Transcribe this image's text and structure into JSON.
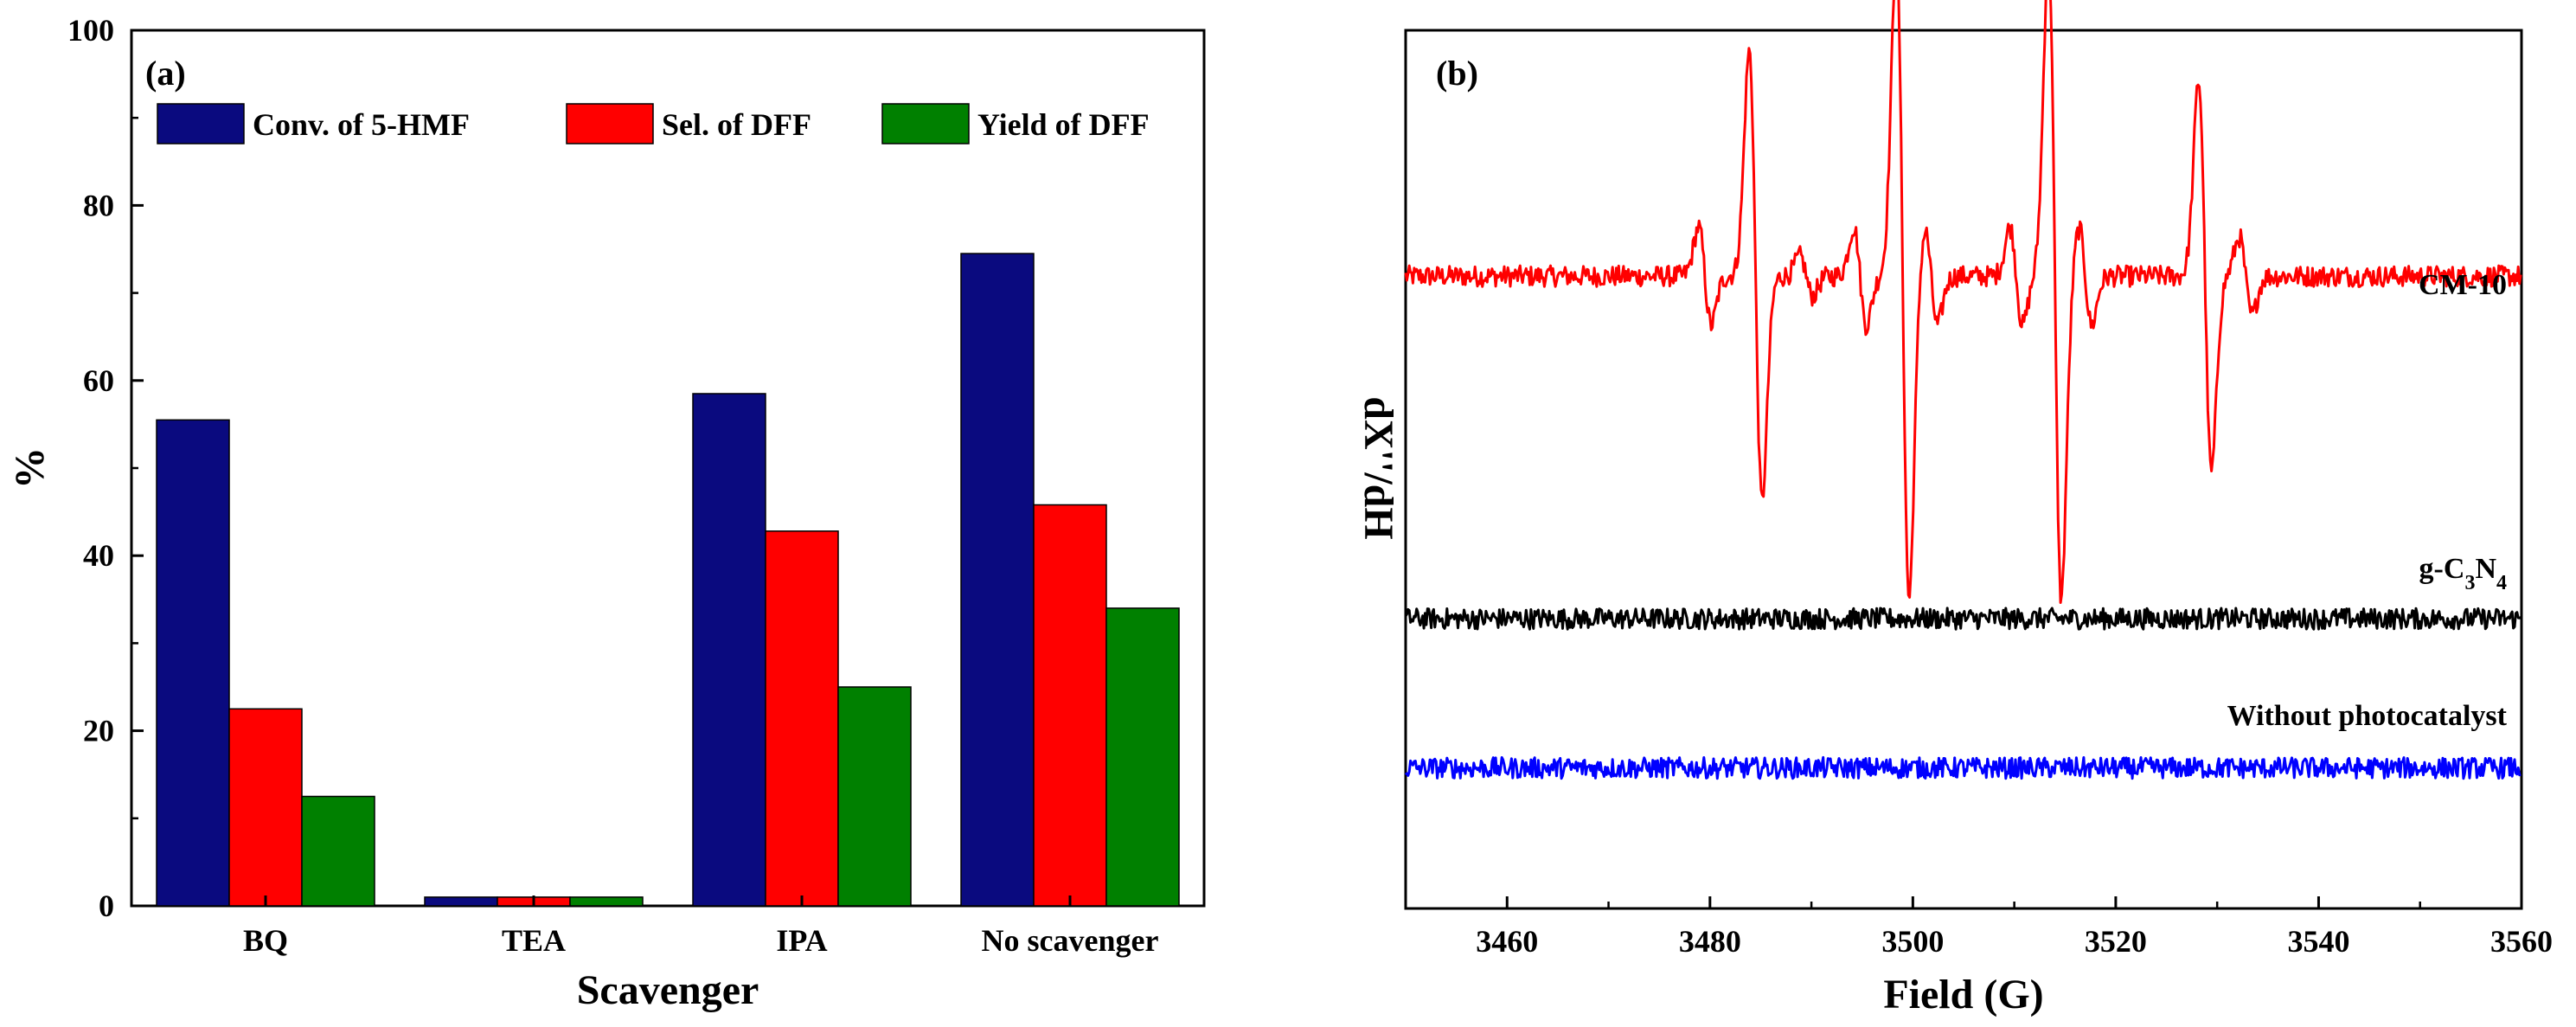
{
  "chart_data": [
    {
      "panel": "(a)",
      "type": "bar",
      "xlabel": "Scavenger",
      "ylabel": "%",
      "ylim": [
        0,
        100
      ],
      "yticks": [
        0,
        20,
        40,
        60,
        80,
        100
      ],
      "categories": [
        "BQ",
        "TEA",
        "IPA",
        "No scavenger"
      ],
      "legend_position": "top",
      "series": [
        {
          "name": "Conv. of 5-HMF",
          "color": "#0a0a7f",
          "values": [
            55.5,
            1.0,
            58.5,
            74.5
          ]
        },
        {
          "name": "Sel. of DFF",
          "color": "#ff0000",
          "values": [
            22.5,
            1.0,
            42.8,
            45.8
          ]
        },
        {
          "name": "Yield of DFF",
          "color": "#008000",
          "values": [
            12.5,
            1.0,
            25.0,
            34.0
          ]
        }
      ]
    },
    {
      "panel": "(b)",
      "type": "line",
      "xlabel": "Field (G)",
      "ylabel": "dX''/dH",
      "xlim": [
        3450,
        3560
      ],
      "xticks": [
        3460,
        3480,
        3500,
        3520,
        3540,
        3560
      ],
      "y_tick_labels": false,
      "series": [
        {
          "name": "CM-10",
          "label_html": "CM-10",
          "color": "#ff0000",
          "baseline": 0.72,
          "noise": 0.012,
          "peaks": [
            {
              "x": 3479.5,
              "amp": 0.05
            },
            {
              "x": 3484.5,
              "amp": 0.23
            },
            {
              "x": 3489.5,
              "amp": 0.02
            },
            {
              "x": 3494.8,
              "amp": 0.05
            },
            {
              "x": 3499.0,
              "amp": 0.33
            },
            {
              "x": 3501.8,
              "amp": 0.05
            },
            {
              "x": 3510.2,
              "amp": 0.05
            },
            {
              "x": 3514.0,
              "amp": 0.33
            },
            {
              "x": 3517.0,
              "amp": 0.05
            },
            {
              "x": 3528.8,
              "amp": 0.2
            },
            {
              "x": 3532.8,
              "amp": 0.04
            }
          ]
        },
        {
          "name": "g-C3N4",
          "label_main": "g-C",
          "label_sub1": "3",
          "label_mid": "N",
          "label_sub2": "4",
          "color": "#000000",
          "baseline": 0.33,
          "noise": 0.012,
          "peaks": []
        },
        {
          "name": "Without photocatalyst",
          "label_html": "Without photocatalyst",
          "color": "#0000ff",
          "baseline": 0.16,
          "noise": 0.012,
          "peaks": []
        }
      ]
    }
  ]
}
